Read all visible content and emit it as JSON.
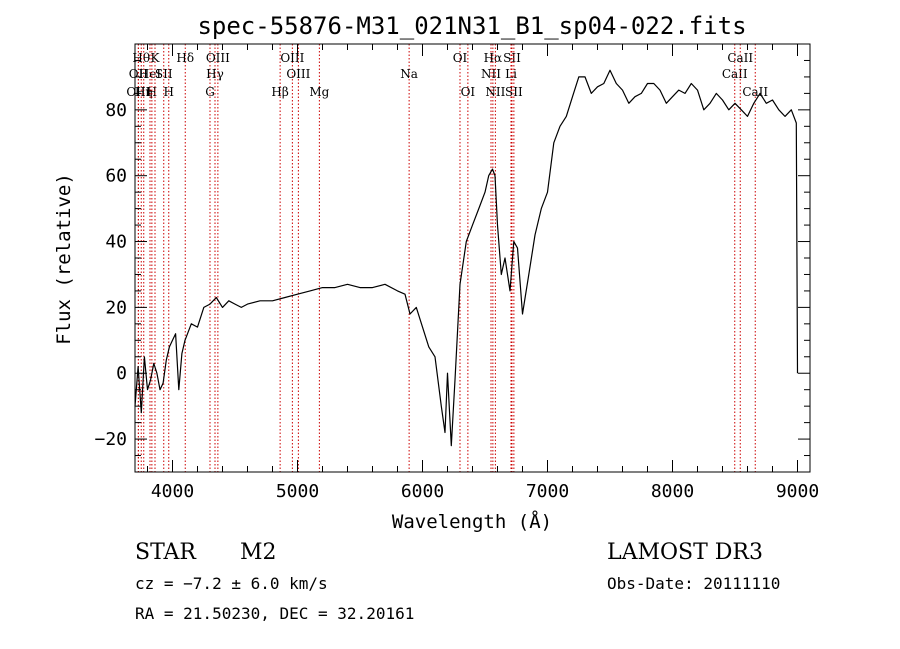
{
  "chart_data": {
    "type": "line",
    "title": "spec-55876-M31_021N31_B1_sp04-022.fits",
    "xlabel": "Wavelength (Å)",
    "ylabel": "Flux (relative)",
    "xlim": [
      3700,
      9100
    ],
    "ylim": [
      -30,
      100
    ],
    "x_ticks": [
      4000,
      5000,
      6000,
      7000,
      8000,
      9000
    ],
    "y_ticks": [
      -20,
      0,
      20,
      40,
      60,
      80
    ],
    "grid": false,
    "line_color": "#000000",
    "marker_color": "#cc0000",
    "series": [
      {
        "x": [
          3700,
          3725,
          3750,
          3775,
          3800,
          3825,
          3850,
          3875,
          3900,
          3925,
          3950,
          3975,
          4000,
          4025,
          4050,
          4075,
          4100,
          4150,
          4200,
          4250,
          4300,
          4350,
          4400,
          4450,
          4500,
          4550,
          4600,
          4700,
          4800,
          4900,
          5000,
          5100,
          5200,
          5300,
          5400,
          5500,
          5600,
          5700,
          5800,
          5860,
          5900,
          5950,
          6000,
          6050,
          6100,
          6150,
          6180,
          6200,
          6230,
          6260,
          6300,
          6350,
          6400,
          6450,
          6500,
          6530,
          6560,
          6580,
          6600,
          6630,
          6660,
          6700,
          6730,
          6760,
          6800,
          6850,
          6900,
          6950,
          7000,
          7050,
          7100,
          7150,
          7200,
          7250,
          7300,
          7350,
          7400,
          7450,
          7500,
          7550,
          7600,
          7650,
          7700,
          7750,
          7800,
          7850,
          7900,
          7950,
          8000,
          8050,
          8100,
          8150,
          8200,
          8250,
          8300,
          8350,
          8400,
          8450,
          8500,
          8550,
          8600,
          8650,
          8700,
          8750,
          8800,
          8850,
          8900,
          8950,
          8990,
          9000
        ],
        "y": [
          -10,
          2,
          -12,
          5,
          -5,
          -2,
          3,
          0,
          -5,
          -3,
          4,
          8,
          10,
          12,
          -5,
          6,
          10,
          15,
          14,
          20,
          21,
          23,
          20,
          22,
          21,
          20,
          21,
          22,
          22,
          23,
          24,
          25,
          26,
          26,
          27,
          26,
          26,
          27,
          25,
          24,
          18,
          20,
          14,
          8,
          5,
          -10,
          -18,
          0,
          -22,
          -2,
          27,
          40,
          45,
          50,
          55,
          60,
          62,
          60,
          45,
          30,
          35,
          25,
          40,
          38,
          18,
          30,
          42,
          50,
          55,
          70,
          75,
          78,
          84,
          90,
          90,
          85,
          87,
          88,
          92,
          88,
          86,
          82,
          84,
          85,
          88,
          88,
          86,
          82,
          84,
          86,
          85,
          88,
          86,
          80,
          82,
          85,
          83,
          80,
          82,
          80,
          78,
          82,
          85,
          82,
          83,
          80,
          78,
          80,
          76,
          0
        ]
      }
    ],
    "line_markers": [
      {
        "x": 3750,
        "label": "Hθ",
        "row": 1
      },
      {
        "x": 3727,
        "label": "OII",
        "row": 2
      },
      {
        "x": 3727,
        "label": "OIII",
        "row": 3
      },
      {
        "x": 3770,
        "label": "Hη",
        "row": 3
      },
      {
        "x": 3820,
        "label": "HeI",
        "row": 2
      },
      {
        "x": 3835,
        "label": "H",
        "row": 3
      },
      {
        "x": 3860,
        "label": "K",
        "row": 1
      },
      {
        "x": 3930,
        "label": "SII",
        "row": 2
      },
      {
        "x": 3970,
        "label": "H",
        "row": 3
      },
      {
        "x": 4102,
        "label": "Hδ",
        "row": 1
      },
      {
        "x": 4300,
        "label": "G",
        "row": 3
      },
      {
        "x": 4340,
        "label": "Hγ",
        "row": 2
      },
      {
        "x": 4363,
        "label": "OIII",
        "row": 1
      },
      {
        "x": 4861,
        "label": "Hβ",
        "row": 3
      },
      {
        "x": 4959,
        "label": "OIII",
        "row": 1
      },
      {
        "x": 5007,
        "label": "OIII",
        "row": 2
      },
      {
        "x": 5175,
        "label": "Mg",
        "row": 3
      },
      {
        "x": 5893,
        "label": "Na",
        "row": 2
      },
      {
        "x": 6300,
        "label": "OI",
        "row": 1
      },
      {
        "x": 6363,
        "label": "OI",
        "row": 3
      },
      {
        "x": 6548,
        "label": "NII",
        "row": 2
      },
      {
        "x": 6563,
        "label": "Hα",
        "row": 1
      },
      {
        "x": 6583,
        "label": "NII",
        "row": 3
      },
      {
        "x": 6708,
        "label": "Li",
        "row": 2
      },
      {
        "x": 6716,
        "label": "SII",
        "row": 1
      },
      {
        "x": 6731,
        "label": "SII",
        "row": 3
      },
      {
        "x": 8498,
        "label": "CaII",
        "row": 2
      },
      {
        "x": 8542,
        "label": "CaII",
        "row": 1
      },
      {
        "x": 8662,
        "label": "CaII",
        "row": 3
      }
    ]
  },
  "footer": {
    "object_type": "STAR",
    "subclass": "M2",
    "survey": "LAMOST DR3",
    "redshift": "cz = −7.2 ± 6.0 km/s",
    "obs_date": "Obs-Date: 20111110",
    "coords": "RA =  21.50230, DEC =  32.20161"
  }
}
